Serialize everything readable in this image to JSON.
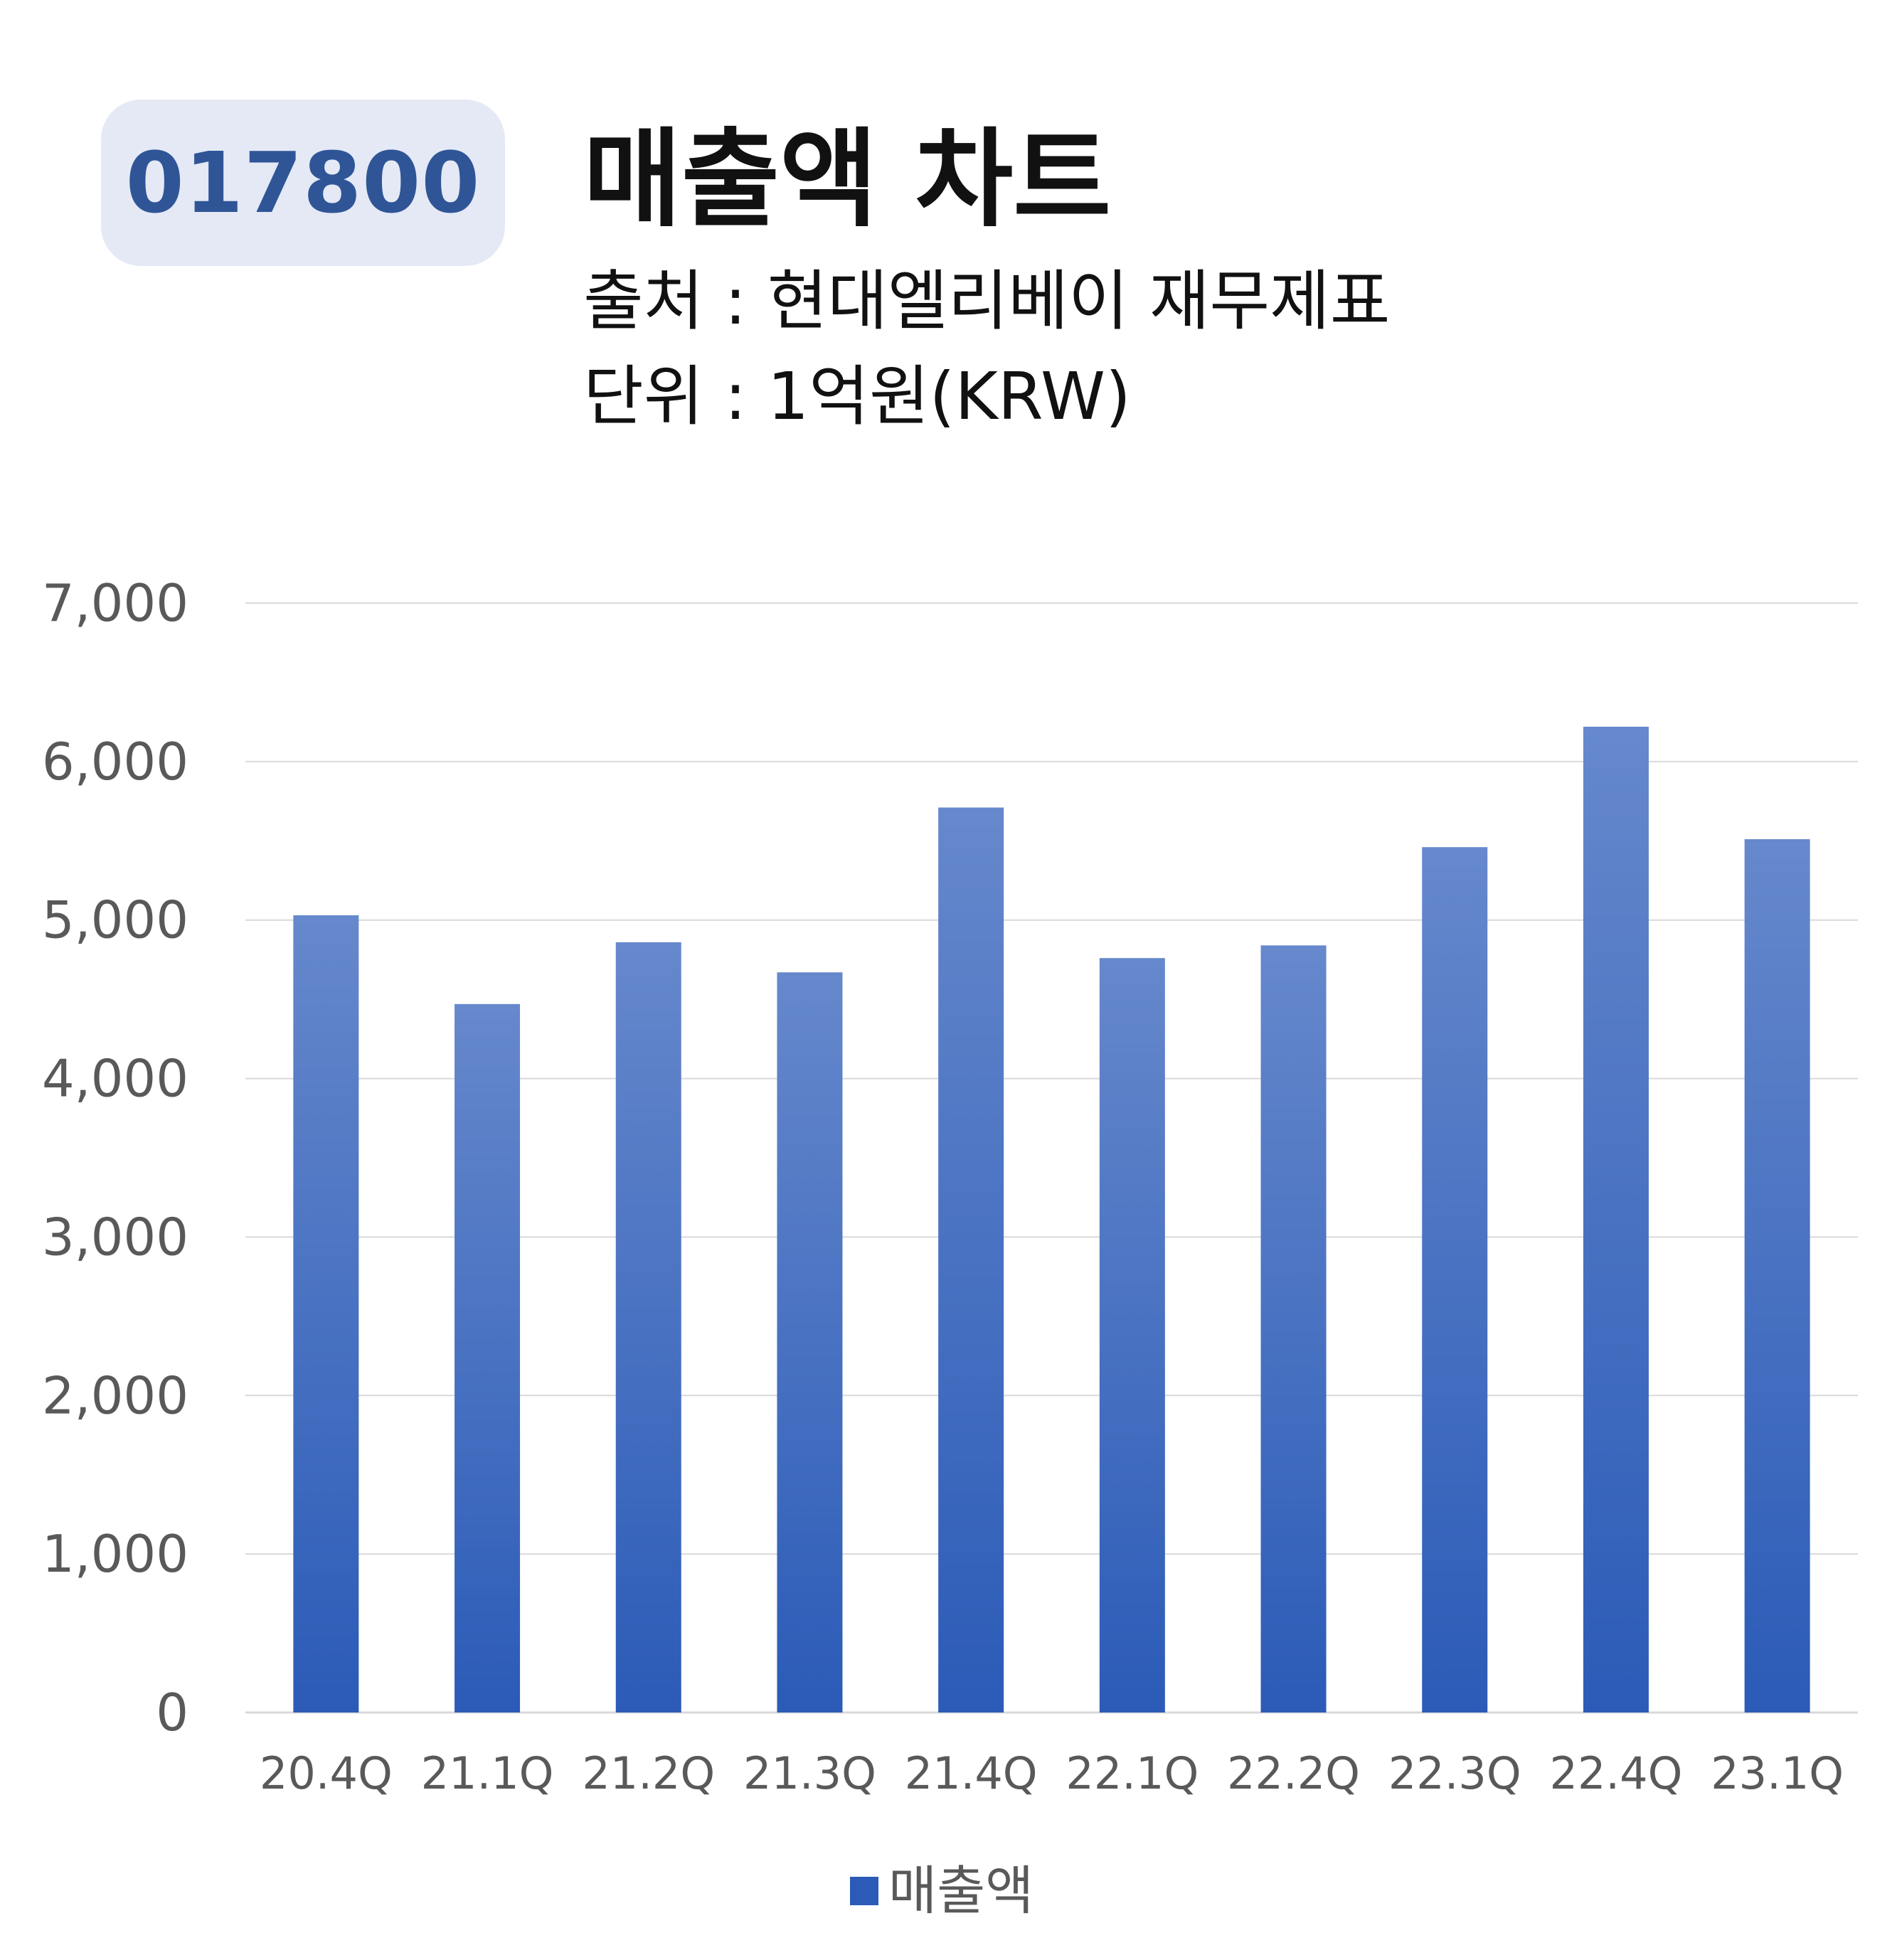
{
  "header": {
    "ticker": "017800",
    "title": "매출액 차트",
    "source": "출처 : 현대엘리베이 재무제표",
    "unit": "단위 : 1억원(KRW)"
  },
  "colors": {
    "bar_top": "#6688cc",
    "bar_bottom": "#2b5bb7",
    "grid": "#d9d9d9",
    "badge_bg": "#e4e9f5",
    "badge_text": "#2f5597"
  },
  "chart_data": {
    "type": "bar",
    "categories": [
      "20.4Q",
      "21.1Q",
      "21.2Q",
      "21.3Q",
      "21.4Q",
      "22.1Q",
      "22.2Q",
      "22.3Q",
      "22.4Q",
      "23.1Q"
    ],
    "series": [
      {
        "name": "매출액",
        "values": [
          5030,
          4470,
          4860,
          4670,
          5710,
          4760,
          4840,
          5460,
          6220,
          5510
        ]
      }
    ],
    "y_ticks": [
      "0",
      "1,000",
      "2,000",
      "3,000",
      "4,000",
      "5,000",
      "6,000",
      "7,000"
    ],
    "ylim": [
      0,
      7000
    ],
    "grid": true,
    "legend_position": "bottom"
  }
}
